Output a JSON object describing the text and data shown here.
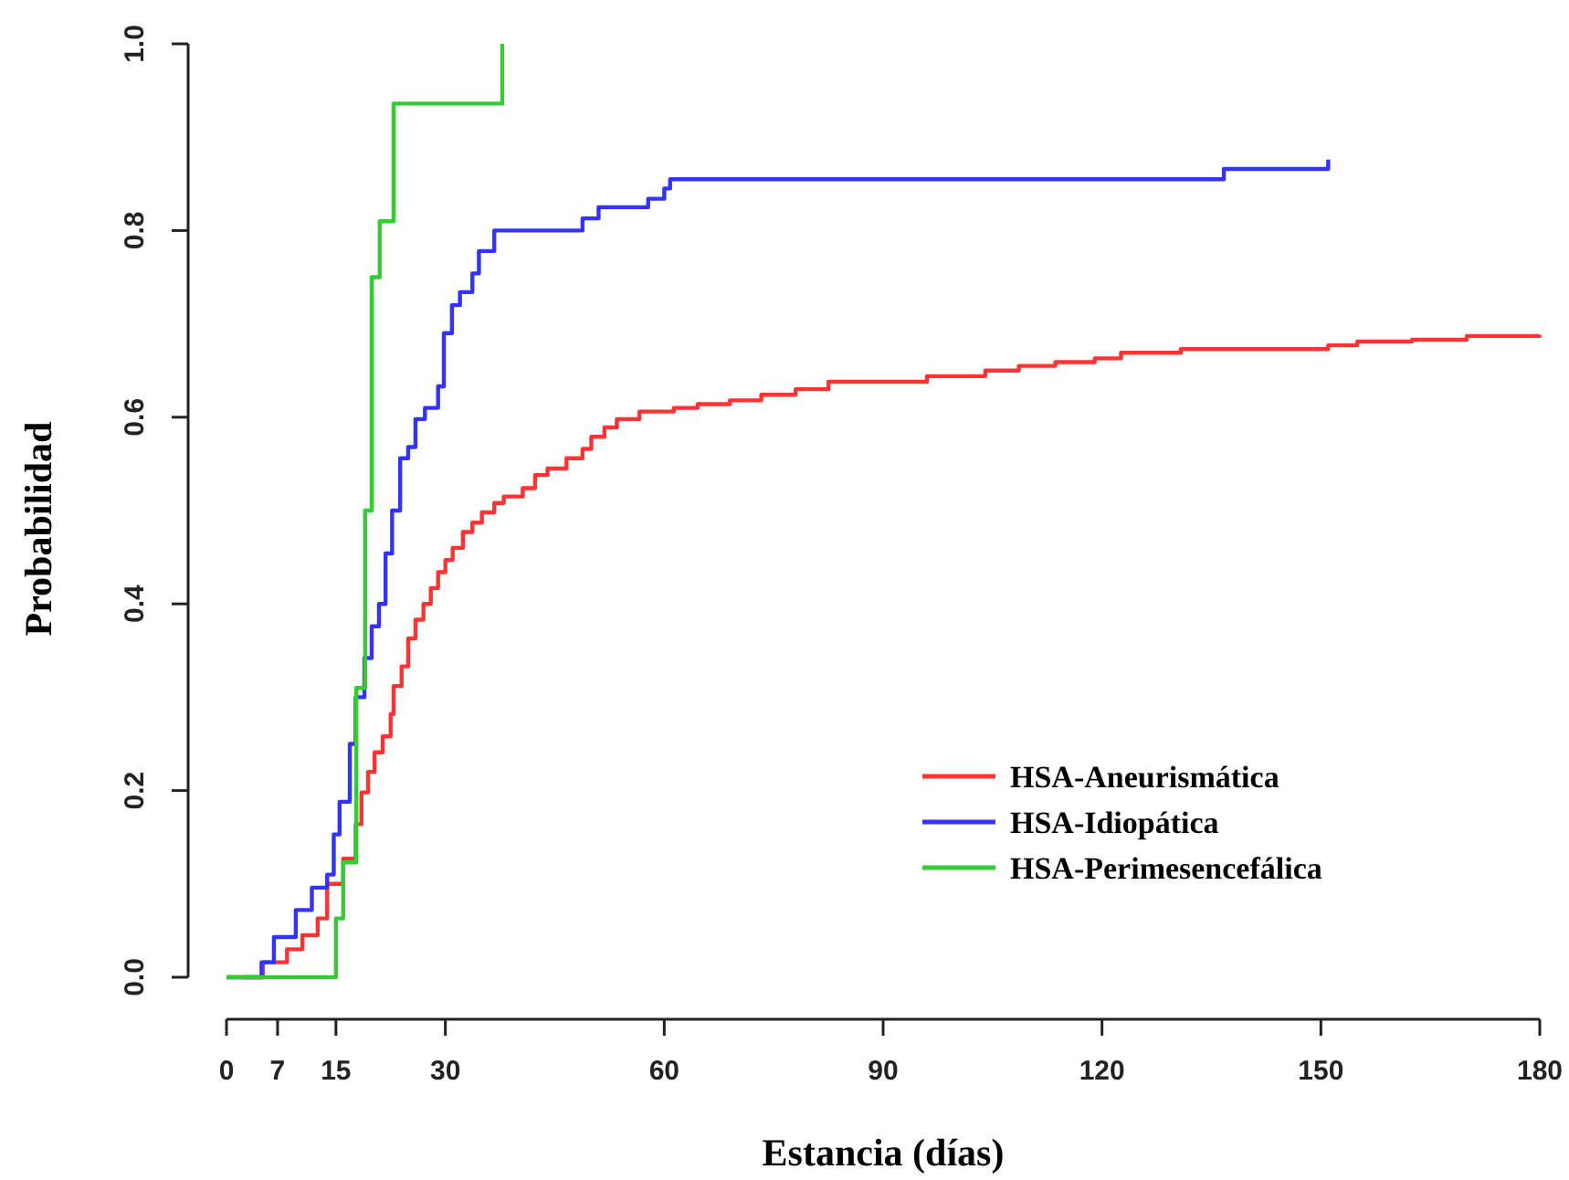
{
  "chart_data": {
    "type": "step",
    "xlabel": "Estancia (días)",
    "ylabel": "Probabilidad",
    "xlim": [
      0,
      180
    ],
    "xticks": [
      0,
      7,
      15,
      30,
      60,
      90,
      120,
      150,
      180
    ],
    "ylim": [
      0,
      1
    ],
    "yticks": [
      {
        "value": 0,
        "label": "0.0"
      },
      0.2,
      0.4,
      0.6,
      0.8,
      {
        "value": 1,
        "label": "1.0"
      }
    ],
    "grid": false,
    "legend": "bottom right",
    "marker": "none",
    "line_style": "solid",
    "series": [
      {
        "name": "HSA-Aneurismática",
        "color": "#ff3333",
        "x": [
          2.6,
          5,
          8.3,
          10.4,
          12.5,
          13.8,
          16,
          17.7,
          18.5,
          19.4,
          20.3,
          21.4,
          22.5,
          22.9,
          24,
          24.9,
          25.9,
          27,
          28,
          29,
          30,
          31,
          32.4,
          33.7,
          35,
          36.7,
          38,
          40.6,
          42.3,
          44,
          46.6,
          48.8,
          50,
          51.8,
          53.5,
          56.6,
          61.3,
          64.6,
          69,
          73.3,
          78,
          82.5,
          96,
          104,
          108.6,
          113.6,
          119,
          122.6,
          130.8,
          151,
          155,
          162.5,
          170,
          180
        ],
        "values": [
          0,
          0.016,
          0.03,
          0.045,
          0.063,
          0.1,
          0.127,
          0.164,
          0.198,
          0.22,
          0.241,
          0.258,
          0.282,
          0.312,
          0.333,
          0.363,
          0.383,
          0.4,
          0.417,
          0.434,
          0.447,
          0.46,
          0.477,
          0.487,
          0.498,
          0.508,
          0.515,
          0.524,
          0.538,
          0.545,
          0.556,
          0.566,
          0.579,
          0.589,
          0.598,
          0.606,
          0.61,
          0.614,
          0.618,
          0.624,
          0.63,
          0.638,
          0.644,
          0.65,
          0.655,
          0.659,
          0.663,
          0.669,
          0.673,
          0.677,
          0.681,
          0.683,
          0.687,
          0.688
        ]
      },
      {
        "name": "HSA-Idiopática",
        "color": "#3333ff",
        "x": [
          0,
          4.8,
          6.5,
          9.5,
          11.7,
          13.8,
          14.7,
          15.5,
          16.9,
          17.7,
          18.9,
          19.9,
          20.9,
          21.8,
          22.7,
          23.8,
          24.9,
          25.9,
          27.2,
          29,
          29.8,
          30.9,
          32,
          33.7,
          34.6,
          36.7,
          48.8,
          51,
          57.8,
          60,
          60.8,
          136.7,
          151
        ],
        "values": [
          0,
          0.016,
          0.043,
          0.072,
          0.096,
          0.11,
          0.153,
          0.188,
          0.25,
          0.3,
          0.342,
          0.376,
          0.4,
          0.454,
          0.5,
          0.556,
          0.568,
          0.598,
          0.61,
          0.633,
          0.69,
          0.72,
          0.734,
          0.754,
          0.778,
          0.8,
          0.813,
          0.825,
          0.834,
          0.845,
          0.855,
          0.866,
          0.876
        ]
      },
      {
        "name": "HSA-Perimesencefálica",
        "color": "#33cc33",
        "x": [
          0,
          15,
          16,
          17.8,
          19,
          19.9,
          21,
          22.9,
          37.8
        ],
        "values": [
          0,
          0.063,
          0.123,
          0.31,
          0.5,
          0.75,
          0.81,
          0.936,
          1
        ]
      }
    ]
  }
}
